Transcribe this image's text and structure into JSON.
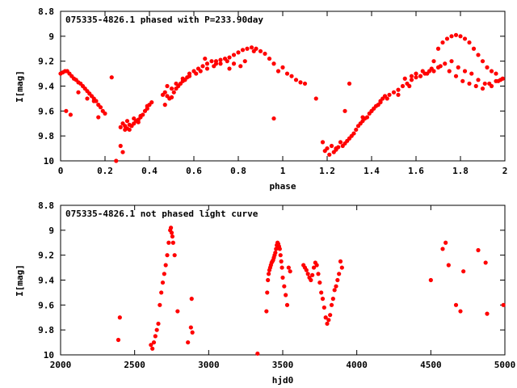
{
  "chart_data": [
    {
      "type": "scatter",
      "title": "075335-4826.1 phased with P=233.90day",
      "xlabel": "phase",
      "ylabel": "I[mag]",
      "xlim": [
        0,
        2
      ],
      "ylim": [
        8.8,
        10
      ],
      "y_inverted": true,
      "xticks": [
        0,
        0.2,
        0.4,
        0.6,
        0.8,
        1,
        1.2,
        1.4,
        1.6,
        1.8,
        2
      ],
      "xtick_labels": [
        "0",
        "0.2",
        "0.4",
        "0.6",
        "0.8",
        "1",
        "1.2",
        "1.4",
        "1.6",
        "1.8",
        "2"
      ],
      "yticks": [
        8.8,
        9,
        9.2,
        9.4,
        9.6,
        9.8,
        10
      ],
      "ytick_labels": [
        "8.8",
        "9",
        "9.2",
        "9.4",
        "9.6",
        "9.8",
        "10"
      ],
      "grid": false,
      "marker_color": "#ff0000",
      "series": [
        {
          "x": [
            0.0,
            0.01,
            0.02,
            0.03,
            0.04,
            0.05,
            0.06,
            0.07,
            0.08,
            0.09,
            0.1,
            0.11,
            0.12,
            0.13,
            0.14,
            0.15,
            0.16,
            0.17,
            0.18,
            0.19,
            0.2,
            0.025,
            0.045,
            0.08,
            0.12,
            0.15,
            0.17,
            0.23,
            0.25,
            0.27,
            0.28,
            0.29,
            0.3,
            0.31,
            0.32,
            0.33,
            0.34,
            0.35,
            0.36,
            0.37,
            0.38,
            0.39,
            0.4,
            0.41,
            0.28,
            0.3,
            0.33,
            0.36,
            0.29,
            0.27,
            0.31,
            0.35,
            0.39,
            0.46,
            0.47,
            0.48,
            0.49,
            0.5,
            0.51,
            0.52,
            0.53,
            0.54,
            0.55,
            0.56,
            0.57,
            0.58,
            0.6,
            0.62,
            0.64,
            0.66,
            0.68,
            0.7,
            0.72,
            0.74,
            0.76,
            0.78,
            0.8,
            0.82,
            0.84,
            0.86,
            0.88,
            0.9,
            0.92,
            0.94,
            0.96,
            0.98,
            0.48,
            0.5,
            0.47,
            0.52,
            0.55,
            0.58,
            0.61,
            0.63,
            0.66,
            0.69,
            0.72,
            0.75,
            0.78,
            0.81,
            0.65,
            0.7,
            0.76,
            0.83,
            0.87,
            1.0,
            1.02,
            1.04,
            1.06,
            1.08,
            1.1,
            0.96,
            1.15,
            1.18,
            1.19,
            1.2,
            1.21,
            1.22,
            1.23,
            1.24,
            1.25,
            1.26,
            1.27,
            1.28,
            1.29,
            1.3,
            1.31,
            1.32,
            1.33,
            1.34,
            1.35,
            1.36,
            1.37,
            1.38,
            1.39,
            1.4,
            1.41,
            1.42,
            1.43,
            1.44,
            1.45,
            1.46,
            1.48,
            1.5,
            1.52,
            1.54,
            1.56,
            1.58,
            1.6,
            1.62,
            1.64,
            1.66,
            1.68,
            1.7,
            1.72,
            1.74,
            1.76,
            1.78,
            1.8,
            1.82,
            1.84,
            1.86,
            1.88,
            1.9,
            1.92,
            1.94,
            1.96,
            1.98,
            1.62,
            1.65,
            1.68,
            1.7,
            1.73,
            1.76,
            1.79,
            1.82,
            1.85,
            1.88,
            1.91,
            1.94,
            1.97,
            1.99,
            1.55,
            1.58,
            1.6,
            1.63,
            1.67,
            1.71,
            1.75,
            1.78,
            1.81,
            1.84,
            1.87,
            1.9,
            1.93,
            1.96,
            1.28,
            1.3,
            1.24,
            1.36,
            1.4,
            1.44,
            1.52,
            1.47,
            1.57
          ],
          "y": [
            9.3,
            9.29,
            9.28,
            9.28,
            9.3,
            9.32,
            9.34,
            9.35,
            9.37,
            9.38,
            9.4,
            9.42,
            9.44,
            9.46,
            9.48,
            9.5,
            9.52,
            9.55,
            9.57,
            9.6,
            9.62,
            9.6,
            9.63,
            9.45,
            9.5,
            9.52,
            9.65,
            9.33,
            10.0,
            9.88,
            9.93,
            9.72,
            9.74,
            9.75,
            9.72,
            9.7,
            9.68,
            9.67,
            9.65,
            9.63,
            9.6,
            9.58,
            9.55,
            9.53,
            9.7,
            9.68,
            9.66,
            9.64,
            9.75,
            9.73,
            9.71,
            9.69,
            9.56,
            9.47,
            9.45,
            9.48,
            9.5,
            9.49,
            9.45,
            9.42,
            9.4,
            9.38,
            9.36,
            9.35,
            9.33,
            9.3,
            9.28,
            9.26,
            9.24,
            9.22,
            9.2,
            9.2,
            9.19,
            9.18,
            9.17,
            9.15,
            9.13,
            9.11,
            9.1,
            9.09,
            9.1,
            9.12,
            9.14,
            9.18,
            9.22,
            9.28,
            9.4,
            9.42,
            9.55,
            9.38,
            9.34,
            9.32,
            9.3,
            9.28,
            9.26,
            9.24,
            9.22,
            9.2,
            9.22,
            9.24,
            9.18,
            9.22,
            9.26,
            9.2,
            9.12,
            9.25,
            9.3,
            9.32,
            9.35,
            9.37,
            9.38,
            9.66,
            9.5,
            9.85,
            9.92,
            9.9,
            9.95,
            9.88,
            9.93,
            9.91,
            9.89,
            9.85,
            9.88,
            9.86,
            9.84,
            9.82,
            9.8,
            9.78,
            9.75,
            9.72,
            9.7,
            9.68,
            9.66,
            9.65,
            9.62,
            9.6,
            9.58,
            9.56,
            9.55,
            9.53,
            9.5,
            9.48,
            9.47,
            9.45,
            9.43,
            9.4,
            9.38,
            9.35,
            9.33,
            9.32,
            9.3,
            9.28,
            9.2,
            9.1,
            9.05,
            9.02,
            9.0,
            8.99,
            9.0,
            9.02,
            9.05,
            9.1,
            9.15,
            9.2,
            9.25,
            9.28,
            9.3,
            9.35,
            9.32,
            9.3,
            9.28,
            9.25,
            9.22,
            9.2,
            9.25,
            9.28,
            9.3,
            9.35,
            9.38,
            9.4,
            9.36,
            9.34,
            9.34,
            9.32,
            9.3,
            9.28,
            9.26,
            9.24,
            9.28,
            9.32,
            9.36,
            9.38,
            9.4,
            9.42,
            9.38,
            9.36,
            9.6,
            9.38,
            9.9,
            9.65,
            9.6,
            9.52,
            9.47,
            9.5,
            9.4
          ],
          "marker": "filled-circle"
        }
      ]
    },
    {
      "type": "scatter",
      "title": "075335-4826.1 not phased light curve",
      "xlabel": "hjd0",
      "ylabel": "I[mag]",
      "xlim": [
        2000,
        5000
      ],
      "ylim": [
        8.8,
        10
      ],
      "y_inverted": true,
      "xticks": [
        2000,
        2500,
        3000,
        3500,
        4000,
        4500,
        5000
      ],
      "xtick_labels": [
        "2000",
        "2500",
        "3000",
        "3500",
        "4000",
        "4500",
        "5000"
      ],
      "yticks": [
        8.8,
        9,
        9.2,
        9.4,
        9.6,
        9.8,
        10
      ],
      "ytick_labels": [
        "8.8",
        "9",
        "9.2",
        "9.4",
        "9.6",
        "9.8",
        "10"
      ],
      "grid": false,
      "marker_color": "#ff0000",
      "series": [
        {
          "x": [
            2390,
            2400,
            2610,
            2620,
            2630,
            2640,
            2650,
            2660,
            2670,
            2680,
            2690,
            2700,
            2710,
            2720,
            2730,
            2740,
            2745,
            2750,
            2755,
            2760,
            2770,
            2790,
            2860,
            2880,
            2885,
            2890,
            3330,
            3390,
            3395,
            3400,
            3405,
            3410,
            3415,
            3420,
            3425,
            3430,
            3435,
            3440,
            3445,
            3450,
            3455,
            3460,
            3465,
            3470,
            3475,
            3480,
            3485,
            3490,
            3495,
            3500,
            3510,
            3520,
            3530,
            3540,
            3550,
            3640,
            3650,
            3660,
            3670,
            3680,
            3690,
            3700,
            3710,
            3720,
            3730,
            3740,
            3750,
            3760,
            3770,
            3780,
            3790,
            3800,
            3810,
            3820,
            3830,
            3840,
            3850,
            3860,
            3870,
            3880,
            3890,
            3900,
            4500,
            4580,
            4600,
            4620,
            4670,
            4700,
            4720,
            4820,
            4870,
            4880,
            4990
          ],
          "y": [
            9.88,
            9.7,
            9.92,
            9.95,
            9.9,
            9.85,
            9.8,
            9.75,
            9.6,
            9.5,
            9.42,
            9.35,
            9.28,
            9.2,
            9.1,
            9.0,
            8.98,
            9.02,
            9.05,
            9.1,
            9.2,
            9.65,
            9.9,
            9.78,
            9.55,
            9.82,
            9.99,
            9.65,
            9.5,
            9.4,
            9.35,
            9.32,
            9.3,
            9.28,
            9.26,
            9.25,
            9.24,
            9.22,
            9.2,
            9.18,
            9.15,
            9.12,
            9.1,
            9.11,
            9.13,
            9.15,
            9.2,
            9.25,
            9.3,
            9.38,
            9.45,
            9.52,
            9.6,
            9.3,
            9.33,
            9.28,
            9.3,
            9.32,
            9.35,
            9.38,
            9.4,
            9.36,
            9.3,
            9.26,
            9.28,
            9.35,
            9.42,
            9.5,
            9.55,
            9.62,
            9.7,
            9.75,
            9.72,
            9.68,
            9.6,
            9.55,
            9.48,
            9.45,
            9.4,
            9.35,
            9.25,
            9.3,
            9.4,
            9.15,
            9.1,
            9.28,
            9.6,
            9.65,
            9.33,
            9.16,
            9.26,
            9.67,
            9.6
          ],
          "marker": "filled-circle"
        }
      ]
    }
  ]
}
